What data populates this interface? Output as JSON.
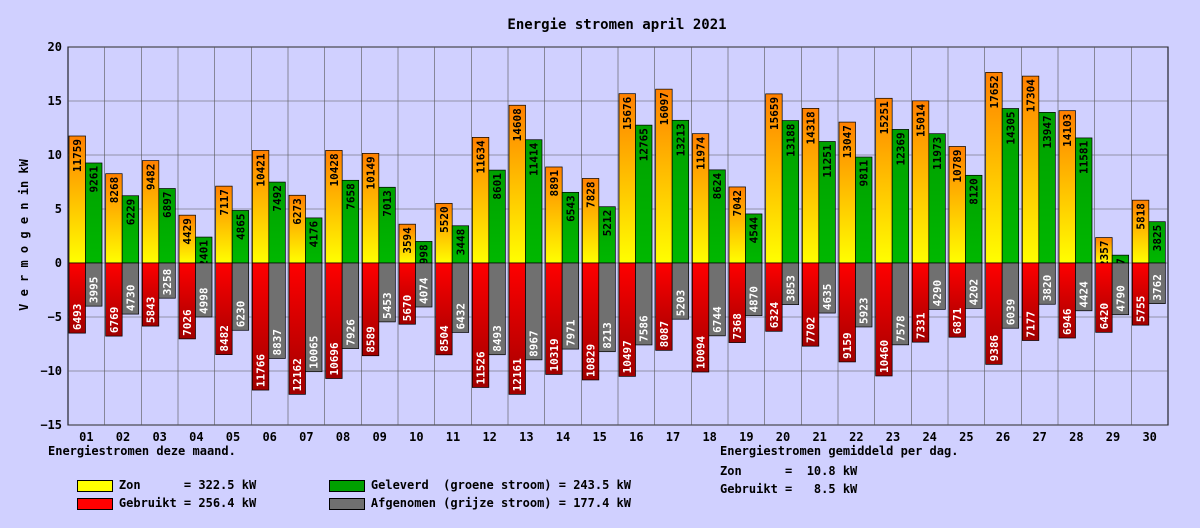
{
  "chart_data": {
    "type": "bar",
    "title": "Energie stromen april 2021",
    "ylabel": "V e r m o g e n   in kW",
    "ylim": [
      -15,
      20
    ],
    "yticks": [
      -15,
      -10,
      -5,
      0,
      5,
      10,
      15,
      20
    ],
    "categories": [
      "01",
      "02",
      "03",
      "04",
      "05",
      "06",
      "07",
      "08",
      "09",
      "10",
      "11",
      "12",
      "13",
      "14",
      "15",
      "16",
      "17",
      "18",
      "19",
      "20",
      "21",
      "22",
      "23",
      "24",
      "25",
      "26",
      "27",
      "28",
      "29",
      "30"
    ],
    "series": [
      {
        "name": "Zon",
        "sign": 1,
        "values": [
          11759,
          8268,
          9482,
          4429,
          7117,
          10421,
          6273,
          10428,
          10149,
          3594,
          5520,
          11634,
          14608,
          8891,
          7828,
          15676,
          16097,
          11974,
          7042,
          15659,
          14318,
          13047,
          15251,
          15014,
          10789,
          17652,
          17304,
          14103,
          2357,
          5818
        ]
      },
      {
        "name": "Geleverd",
        "sign": 1,
        "values": [
          9261,
          6229,
          6897,
          2401,
          4865,
          7492,
          4176,
          7658,
          7013,
          1998,
          3448,
          8601,
          11414,
          6543,
          5212,
          12765,
          13213,
          8624,
          4544,
          13188,
          11251,
          9811,
          12369,
          11973,
          8120,
          14305,
          13947,
          11581,
          727,
          3825
        ]
      },
      {
        "name": "Gebruikt",
        "sign": -1,
        "values": [
          6493,
          6769,
          5843,
          7026,
          8482,
          11766,
          12162,
          10696,
          8589,
          5670,
          8504,
          11526,
          12161,
          10319,
          10829,
          10497,
          8087,
          10094,
          7368,
          6324,
          7702,
          9159,
          10460,
          7331,
          6871,
          9386,
          7177,
          6946,
          6420,
          5755
        ]
      },
      {
        "name": "Afgenomen",
        "sign": -1,
        "values": [
          3995,
          4730,
          3258,
          4998,
          6230,
          8837,
          10065,
          7926,
          5453,
          4074,
          6432,
          8493,
          8967,
          7971,
          8213,
          7586,
          5203,
          6744,
          4870,
          3853,
          4635,
          5923,
          7578,
          4290,
          4202,
          6039,
          3820,
          4424,
          4790,
          3762
        ]
      }
    ],
    "legend": {
      "heading": "Energiestromen deze maand.",
      "items": [
        {
          "text": "Zon      = 322.5 kW",
          "color": "#ffff00"
        },
        {
          "text": "Geleverd  (groene stroom) = 243.5 kW",
          "color": "#00a000"
        },
        {
          "text": "Gebruikt = 256.4 kW",
          "color": "#ff0000"
        },
        {
          "text": "Afgenomen (grijze stroom) = 177.4 kW",
          "color": "#707070"
        }
      ]
    },
    "averages": {
      "heading": "Energiestromen gemiddeld per dag.",
      "zon": "Zon      =  10.8 kW",
      "gebruikt": "Gebruikt =   8.5 kW"
    },
    "colors": {
      "zon_top": "#ff8000",
      "zon_bottom": "#ffff00",
      "geleverd_top": "#00a000",
      "geleverd_bottom": "#00d000",
      "gebruikt_top": "#ff0000",
      "gebruikt_bottom": "#a00000",
      "afgenomen": "#707070",
      "grid": "#000000",
      "background": "#d0d0ff"
    }
  }
}
